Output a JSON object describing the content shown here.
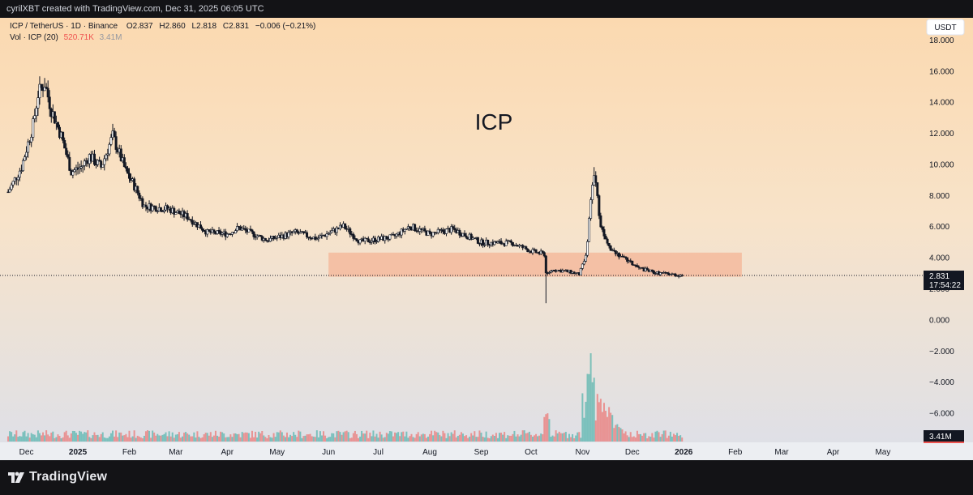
{
  "header": {
    "creator": "cyrilXBT created with TradingView.com, Dec 31, 2025 06:05 UTC"
  },
  "legend": {
    "symbol": "ICP / TetherUS · 1D · Binance",
    "open_label": "O",
    "open": "2.837",
    "high_label": "H",
    "high": "2.860",
    "low_label": "L",
    "low": "2.818",
    "close_label": "C",
    "close": "2.831",
    "change": "−0.006 (−0.21%)",
    "vol_label": "Vol · ICP (20)",
    "vol_value": "520.71K",
    "vol_ma_value": "3.41M"
  },
  "currency_badge": "USDT",
  "annotation": "ICP",
  "price_badge": {
    "price": "2.831",
    "countdown": "17:54:22"
  },
  "volume_badge": "3.41M",
  "footer": {
    "brand": "TradingView"
  },
  "colors": {
    "up": "#26a69a",
    "down": "#ef5350",
    "candle": "#131722",
    "zone": "#f4b89a",
    "bg_top": "#fbd9b0",
    "bg_bottom": "#dde0e9"
  },
  "chart_data": {
    "type": "candlestick",
    "title": "ICP",
    "y_axis": {
      "ticks": [
        "18.000",
        "16.000",
        "14.000",
        "12.000",
        "10.000",
        "8.000",
        "6.000",
        "4.000",
        "2.000",
        "0.000",
        "−2.000",
        "−4.000",
        "−6.000"
      ],
      "ylim": [
        -7.9,
        19.4
      ]
    },
    "x_axis": {
      "ticks": [
        "Dec",
        "2025",
        "Feb",
        "Mar",
        "Apr",
        "May",
        "Jun",
        "Jul",
        "Aug",
        "Sep",
        "Oct",
        "Nov",
        "Dec",
        "2026",
        "Feb",
        "Mar",
        "Apr",
        "May"
      ],
      "bold": [
        "2025",
        "2026"
      ]
    },
    "zone": {
      "from": "Jun",
      "to": "early Feb 2026",
      "low": 2.75,
      "high": 4.3
    },
    "last_price": 2.831,
    "price_path": {
      "dates": [
        "Nov 20 2024",
        "Nov 28 2024",
        "Dec 5 2024",
        "Dec 8 2024",
        "Dec 12 2024",
        "Dec 16 2024",
        "Dec 22 2024",
        "Dec 28 2024",
        "Jan 3 2025",
        "Jan 8 2025",
        "Jan 15 2025",
        "Jan 22 2025",
        "Jan 30 2025",
        "Feb 3 2025",
        "Feb 10 2025",
        "Feb 25 2025",
        "Mar 8 2025",
        "Mar 20 2025",
        "Apr 1 2025",
        "Apr 8 2025",
        "Apr 25 2025",
        "May 12 2025",
        "May 25 2025",
        "Jun 10 2025",
        "Jun 20 2025",
        "Jul 10 2025",
        "Jul 20 2025",
        "Aug 1 2025",
        "Aug 15 2025",
        "Sep 1 2025",
        "Sep 20 2025",
        "Oct 1 2025",
        "Oct 9 2025",
        "Oct 10 2025",
        "Oct 15 2025",
        "Oct 25 2025",
        "Oct 30 2025",
        "Nov 3 2025",
        "Nov 6 2025",
        "Nov 8 2025",
        "Nov 12 2025",
        "Nov 18 2025",
        "Nov 25 2025",
        "Dec 5 2025",
        "Dec 15 2025",
        "Dec 31 2025"
      ],
      "close": [
        8.2,
        9.8,
        12.5,
        14.5,
        15.2,
        13.5,
        11.8,
        9.5,
        9.8,
        10.5,
        9.8,
        11.8,
        9.5,
        8.8,
        7.3,
        7.1,
        6.6,
        5.6,
        5.5,
        5.9,
        5.1,
        5.6,
        5.2,
        6.0,
        5.0,
        5.3,
        6.0,
        5.5,
        5.8,
        4.95,
        4.9,
        4.4,
        4.2,
        3.05,
        3.2,
        3.05,
        2.9,
        4.0,
        7.5,
        9.6,
        6.0,
        4.6,
        4.0,
        3.3,
        3.0,
        2.83
      ]
    },
    "notable_wicks": {
      "oct_10_2025_low": 1.05,
      "nov_8_2025_high": 9.8
    },
    "volume": {
      "last": "520.71K",
      "ma20": "3.41M",
      "spike_period": "Nov 2025"
    }
  }
}
